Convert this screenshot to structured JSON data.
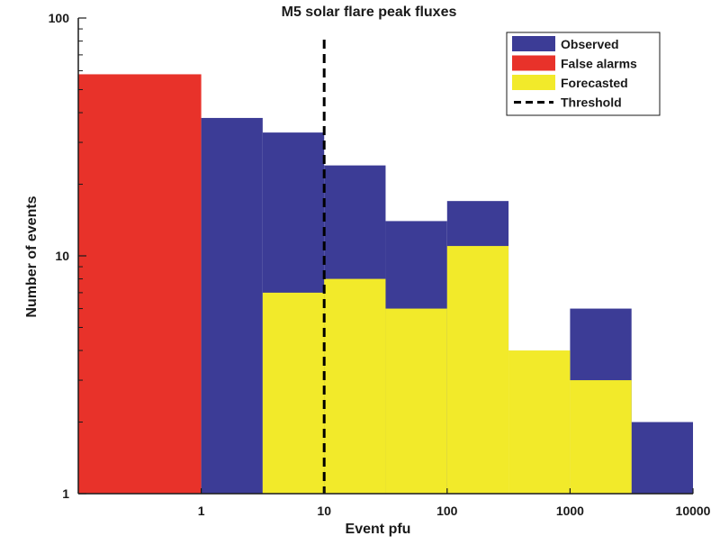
{
  "chart_data": {
    "type": "bar",
    "title": "M5 solar flare peak fluxes",
    "xlabel": "Event pfu",
    "ylabel": "Number of events",
    "x_scale": "log",
    "y_scale": "log",
    "xlim": [
      0.1,
      10000
    ],
    "ylim": [
      1,
      100
    ],
    "x_ticks": [
      {
        "value": 1,
        "label": "1"
      },
      {
        "value": 10,
        "label": "10"
      },
      {
        "value": 100,
        "label": "100"
      },
      {
        "value": 1000,
        "label": "1000"
      },
      {
        "value": 10000,
        "label": "10000"
      }
    ],
    "y_ticks": [
      {
        "value": 1,
        "label": "1"
      },
      {
        "value": 10,
        "label": "10"
      },
      {
        "value": 100,
        "label": "100"
      }
    ],
    "bin_edges": [
      0.1,
      1,
      3.16,
      10,
      31.6,
      100,
      316,
      1000,
      3162,
      10000
    ],
    "series": [
      {
        "name": "Observed",
        "color": "#3c3c96",
        "values": [
          0,
          38,
          33,
          24,
          14,
          17,
          0,
          6,
          2
        ]
      },
      {
        "name": "False alarms",
        "color": "#e8322a",
        "values": [
          58,
          0,
          0,
          0,
          0,
          0,
          0,
          0,
          0
        ]
      },
      {
        "name": "Forecasted",
        "color": "#f2ea2a",
        "values": [
          0,
          0,
          7,
          8,
          6,
          11,
          4,
          3,
          0
        ]
      }
    ],
    "threshold": {
      "name": "Threshold",
      "x": 10,
      "style": "dashed",
      "color": "#000000"
    },
    "legend_position": "top-right",
    "grid": false
  }
}
